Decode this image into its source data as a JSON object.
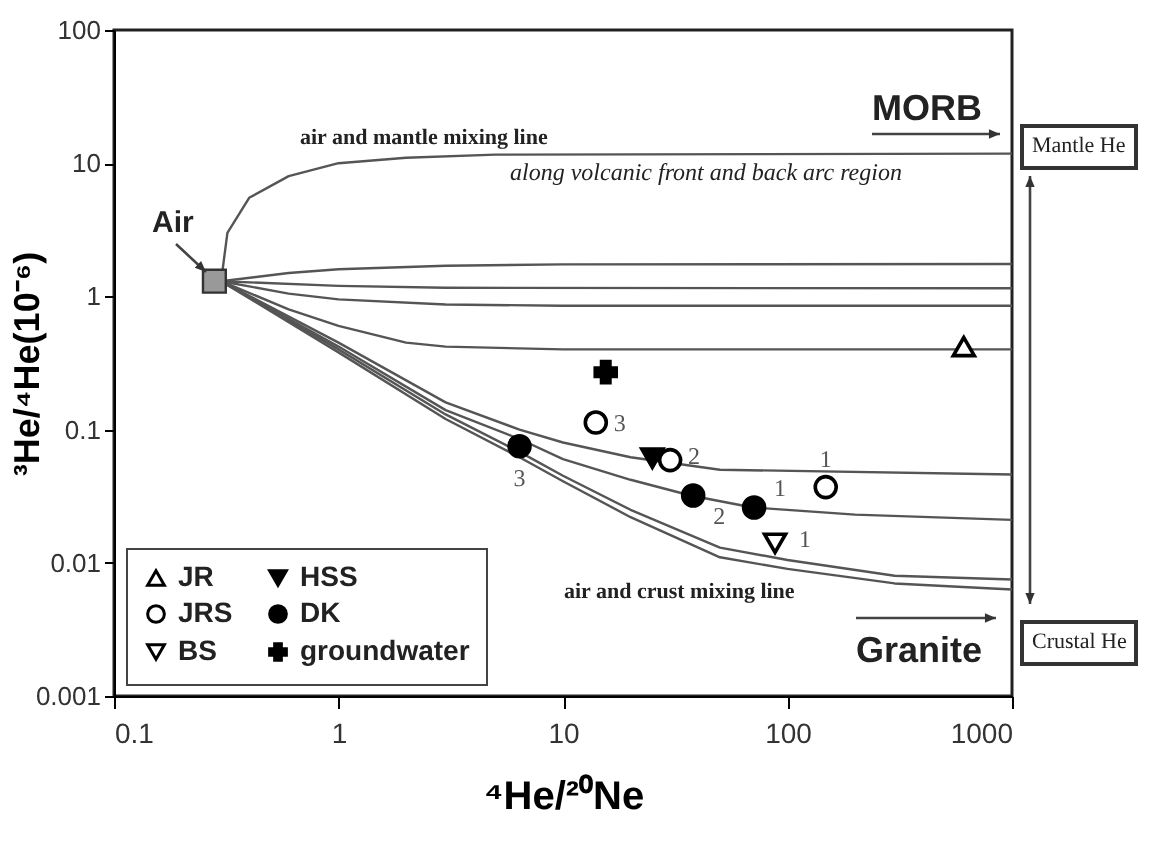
{
  "chart_data": {
    "type": "scatter",
    "xlabel": "⁴He/²⁰Ne",
    "ylabel": "³He/⁴He(10⁻⁶)",
    "xlim": [
      0.1,
      1000
    ],
    "ylim": [
      0.001,
      100
    ],
    "log": "xy",
    "grid": false,
    "legend": "bottom left",
    "xticks": [
      0.1,
      1,
      10,
      100,
      1000
    ],
    "yticks": [
      0.001,
      0.01,
      0.1,
      1,
      10,
      100
    ],
    "series": [
      {
        "type": "line",
        "color": "#555555",
        "x": [
          0.3,
          0.32,
          0.4,
          0.6,
          1,
          2,
          5,
          1000
        ],
        "values": [
          1.3,
          3,
          5.5,
          8,
          10,
          11,
          11.6,
          11.8
        ]
      },
      {
        "type": "line",
        "color": "#555555",
        "x": [
          0.3,
          0.6,
          1,
          3,
          10,
          1000
        ],
        "values": [
          1.3,
          1.5,
          1.6,
          1.7,
          1.74,
          1.75
        ]
      },
      {
        "type": "line",
        "color": "#555555",
        "x": [
          0.3,
          1,
          3,
          1000
        ],
        "values": [
          1.3,
          1.2,
          1.16,
          1.15
        ]
      },
      {
        "type": "line",
        "color": "#555555",
        "x": [
          0.3,
          0.6,
          1,
          3,
          10,
          1000
        ],
        "values": [
          1.3,
          1.05,
          0.95,
          0.87,
          0.85,
          0.85
        ]
      },
      {
        "type": "line",
        "color": "#555555",
        "x": [
          0.3,
          0.6,
          1,
          2,
          3,
          10,
          1000
        ],
        "values": [
          1.3,
          0.8,
          0.6,
          0.45,
          0.42,
          0.4,
          0.4
        ]
      },
      {
        "type": "line",
        "color": "#555555",
        "x": [
          0.3,
          1,
          3,
          6.4,
          10,
          20,
          50,
          1000
        ],
        "values": [
          1.3,
          0.45,
          0.16,
          0.1,
          0.08,
          0.062,
          0.05,
          0.046
        ]
      },
      {
        "type": "line",
        "color": "#555555",
        "x": [
          0.3,
          1,
          3,
          6.4,
          10,
          20,
          37,
          70,
          200,
          1000
        ],
        "values": [
          1.3,
          0.42,
          0.14,
          0.085,
          0.06,
          0.042,
          0.032,
          0.026,
          0.023,
          0.021
        ]
      },
      {
        "type": "line",
        "color": "#555555",
        "x": [
          0.3,
          1,
          3,
          6.4,
          10,
          20,
          50,
          100,
          300,
          1000
        ],
        "values": [
          1.3,
          0.4,
          0.13,
          0.068,
          0.045,
          0.025,
          0.013,
          0.0105,
          0.008,
          0.0075
        ]
      },
      {
        "type": "line",
        "color": "#555555",
        "x": [
          0.3,
          1,
          3,
          6.4,
          10,
          20,
          50,
          100,
          300,
          1000
        ],
        "values": [
          1.3,
          0.38,
          0.12,
          0.062,
          0.041,
          0.022,
          0.011,
          0.009,
          0.007,
          0.0063
        ]
      },
      {
        "marker": "square",
        "color": "#999999",
        "x": [
          0.28
        ],
        "values": [
          1.3
        ]
      },
      {
        "name": "JR",
        "marker": "triangle-open",
        "color": "#000000",
        "x": [
          610
        ],
        "values": [
          0.42
        ]
      },
      {
        "name": "JRS",
        "marker": "circle-open",
        "color": "#000000",
        "x": [
          14,
          30,
          148
        ],
        "values": [
          0.113,
          0.059,
          0.037
        ]
      },
      {
        "name": "BS",
        "marker": "triangle-down-open",
        "color": "#000000",
        "x": [
          88
        ],
        "values": [
          0.014
        ]
      },
      {
        "name": "HSS",
        "marker": "triangle-down",
        "color": "#000000",
        "x": [
          25
        ],
        "values": [
          0.061
        ]
      },
      {
        "name": "DK",
        "marker": "circle",
        "color": "#000000",
        "x": [
          6.4,
          38,
          71
        ],
        "values": [
          0.075,
          0.032,
          0.026
        ]
      },
      {
        "name": "groundwater",
        "marker": "cross",
        "color": "#000000",
        "x": [
          15.5
        ],
        "values": [
          0.27
        ]
      }
    ],
    "annotations": [
      "Air",
      "air and mantle mixing line",
      "along volcanic front and back arc region",
      "MORB",
      "Mantle He",
      "air and crust mixing line",
      "Granite",
      "Crustal He",
      {
        "text": "3",
        "x": 14,
        "y": 0.113
      },
      {
        "text": "2",
        "x": 30,
        "y": 0.059
      },
      {
        "text": "1",
        "x": 148,
        "y": 0.037
      },
      {
        "text": "1",
        "x": 88,
        "y": 0.014
      },
      {
        "text": "3",
        "x": 6.4,
        "y": 0.075
      },
      {
        "text": "2",
        "x": 38,
        "y": 0.032
      },
      {
        "text": "1",
        "x": 71,
        "y": 0.026
      }
    ]
  }
}
